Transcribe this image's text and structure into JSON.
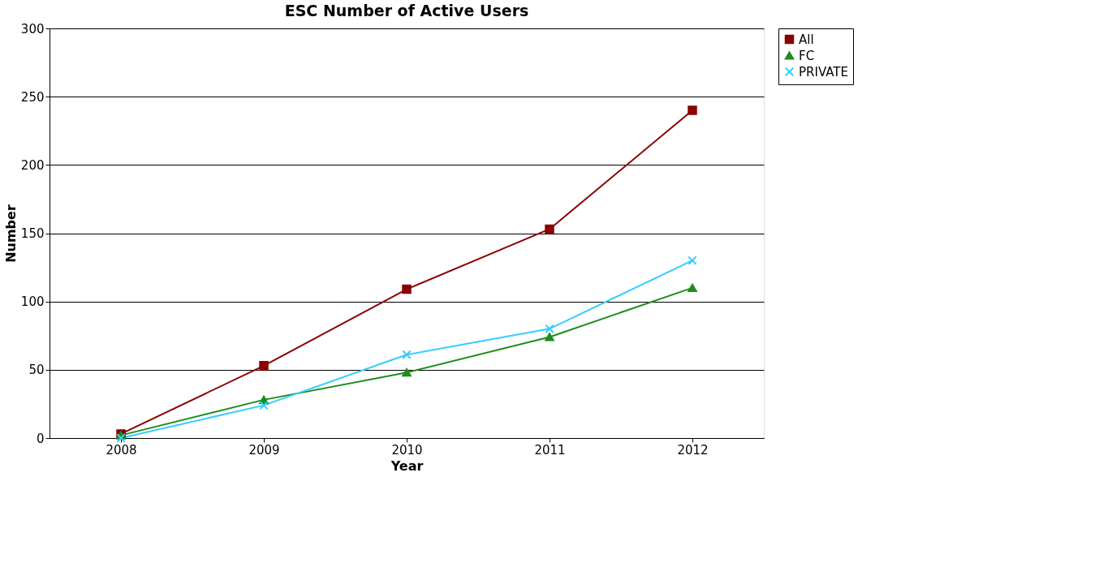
{
  "chart_data": {
    "type": "line",
    "title": "ESC Number of Active Users",
    "xlabel": "Year",
    "ylabel": "Number",
    "categories": [
      "2008",
      "2009",
      "2010",
      "2011",
      "2012"
    ],
    "series": [
      {
        "name": "All",
        "color": "#8b0000",
        "marker": "square",
        "values": [
          3,
          53,
          109,
          153,
          240
        ]
      },
      {
        "name": "FC",
        "color": "#1e8c1e",
        "marker": "triangle",
        "values": [
          2,
          28,
          48,
          74,
          110
        ]
      },
      {
        "name": "PRIVATE",
        "color": "#33ccff",
        "marker": "cross",
        "values": [
          0,
          24,
          61,
          80,
          130
        ]
      }
    ],
    "ylim": [
      0,
      300
    ],
    "yticks": [
      0,
      50,
      100,
      150,
      200,
      250,
      300
    ],
    "grid": "y",
    "legend": "right"
  }
}
